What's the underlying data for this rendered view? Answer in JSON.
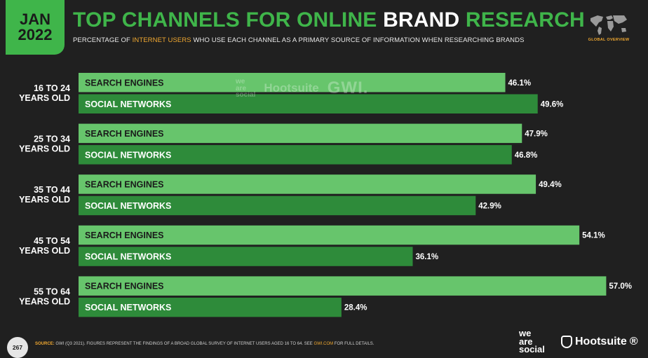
{
  "header": {
    "month": "JAN",
    "year": "2022",
    "title_main": "TOP CHANNELS FOR ONLINE ",
    "title_accent": "BRAND",
    "title_end": " RESEARCH",
    "subtitle_pre": "PERCENTAGE OF ",
    "subtitle_highlight": "INTERNET USERS",
    "subtitle_post": " WHO USE EACH CHANNEL AS A PRIMARY SOURCE OF INFORMATION WHEN RESEARCHING BRANDS",
    "global_label": "GLOBAL OVERVIEW"
  },
  "watermark": {
    "was": [
      "we",
      "are",
      "social"
    ],
    "hootsuite": "Hootsuite",
    "gwi": "GWI."
  },
  "footer": {
    "page_number": "267",
    "source_label": "SOURCE:",
    "source_text": " GWI (Q3 2021). FIGURES REPRESENT THE FINDINGS OF A BROAD GLOBAL SURVEY OF INTERNET USERS AGED 16 TO 64. SEE ",
    "source_link": "GWI.COM",
    "source_end": " FOR FULL DETAILS.",
    "logo_was": [
      "we",
      "are",
      "social"
    ],
    "logo_hootsuite": "Hootsuite",
    "logo_reg": "®"
  },
  "colors": {
    "background": "#202020",
    "accent_green": "#3fb54a",
    "light_bar": "#67c56c",
    "dark_bar": "#2e8b3a",
    "highlight_orange": "#f0a830"
  },
  "chart_data": {
    "type": "bar",
    "orientation": "horizontal",
    "unit": "%",
    "xlim": [
      0,
      60
    ],
    "groups": [
      {
        "label": [
          "16 TO 24",
          "YEARS OLD"
        ],
        "bars": [
          {
            "name": "SEARCH ENGINES",
            "value": 46.1,
            "display": "46.1%"
          },
          {
            "name": "SOCIAL NETWORKS",
            "value": 49.6,
            "display": "49.6%"
          }
        ]
      },
      {
        "label": [
          "25 TO 34",
          "YEARS OLD"
        ],
        "bars": [
          {
            "name": "SEARCH ENGINES",
            "value": 47.9,
            "display": "47.9%"
          },
          {
            "name": "SOCIAL NETWORKS",
            "value": 46.8,
            "display": "46.8%"
          }
        ]
      },
      {
        "label": [
          "35 TO 44",
          "YEARS OLD"
        ],
        "bars": [
          {
            "name": "SEARCH ENGINES",
            "value": 49.4,
            "display": "49.4%"
          },
          {
            "name": "SOCIAL NETWORKS",
            "value": 42.9,
            "display": "42.9%"
          }
        ]
      },
      {
        "label": [
          "45 TO 54",
          "YEARS OLD"
        ],
        "bars": [
          {
            "name": "SEARCH ENGINES",
            "value": 54.1,
            "display": "54.1%"
          },
          {
            "name": "SOCIAL NETWORKS",
            "value": 36.1,
            "display": "36.1%"
          }
        ]
      },
      {
        "label": [
          "55 TO 64",
          "YEARS OLD"
        ],
        "bars": [
          {
            "name": "SEARCH ENGINES",
            "value": 57.0,
            "display": "57.0%"
          },
          {
            "name": "SOCIAL NETWORKS",
            "value": 28.4,
            "display": "28.4%"
          }
        ]
      }
    ]
  }
}
